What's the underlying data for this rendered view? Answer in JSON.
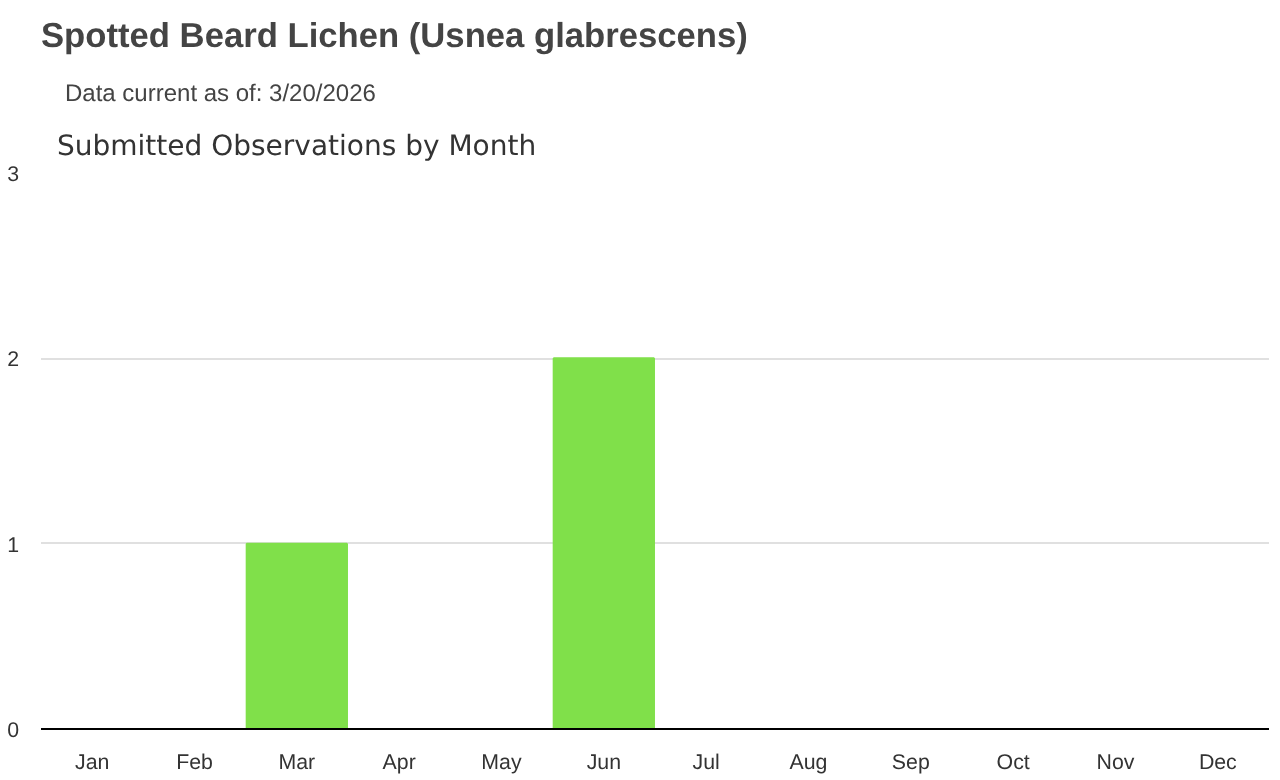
{
  "chart_data": {
    "type": "bar",
    "title": "Spotted Beard Lichen   (Usnea glabrescens)",
    "subtitle": "Data current as of: 3/20/2026",
    "annotations": [
      "Submitted Observations by Month"
    ],
    "categories": [
      "Jan",
      "Feb",
      "Mar",
      "Apr",
      "May",
      "Jun",
      "Jul",
      "Aug",
      "Sep",
      "Oct",
      "Nov",
      "Dec"
    ],
    "values": [
      0,
      0,
      1,
      0,
      0,
      2,
      0,
      0,
      0,
      0,
      0,
      0
    ],
    "color": "#80e04a",
    "ylim": [
      0,
      3
    ],
    "yticks": [
      0,
      1,
      2,
      3
    ],
    "grid": "y"
  }
}
